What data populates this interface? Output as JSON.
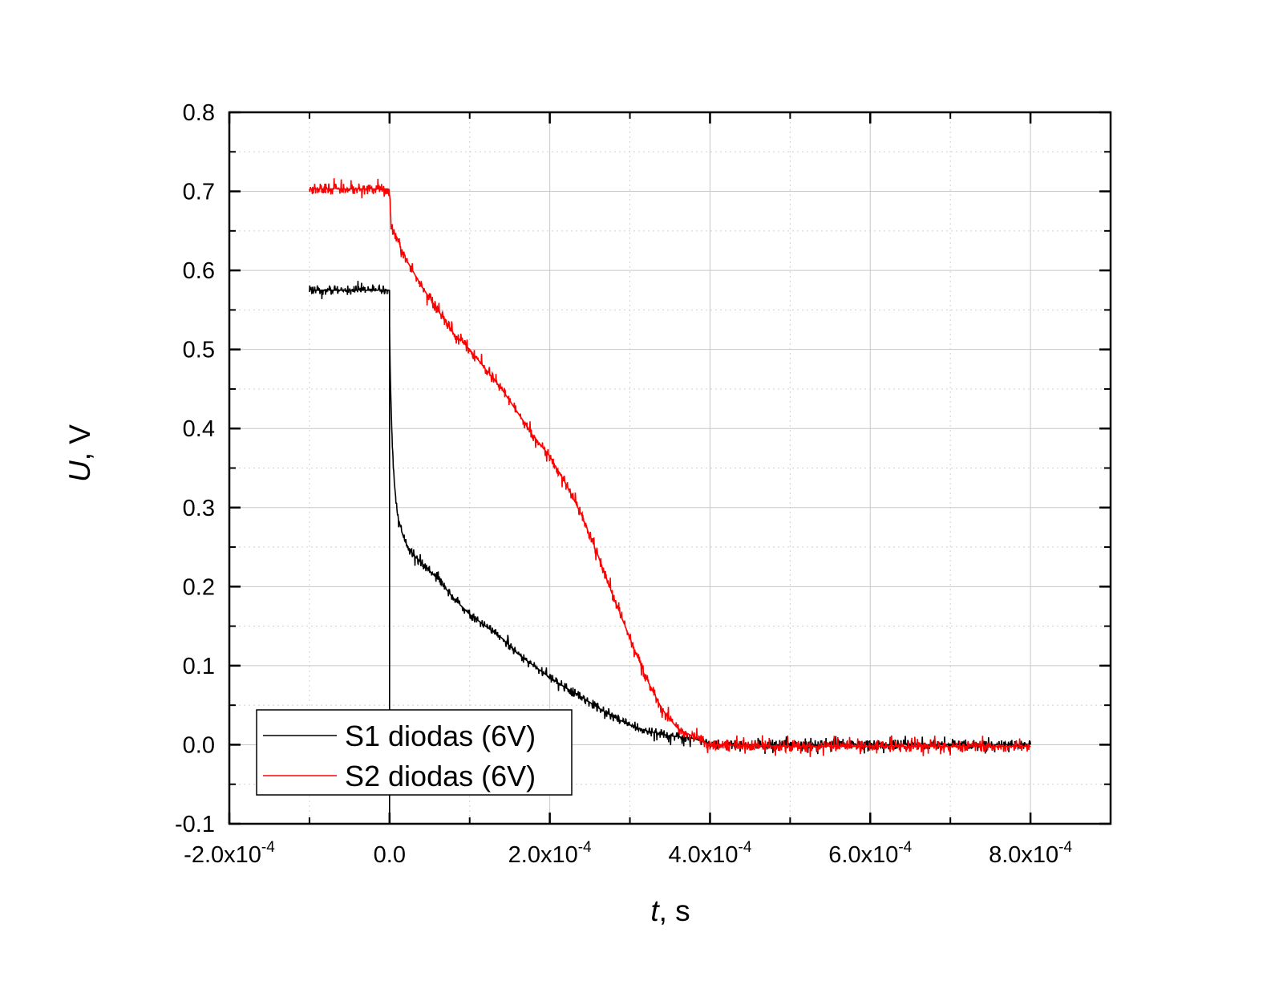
{
  "chart_data": {
    "type": "line",
    "xlabel": {
      "var": "t",
      "rest": ", s"
    },
    "ylabel": {
      "var": "U",
      "rest": ", V"
    },
    "xlim": [
      -0.0002,
      0.0009
    ],
    "ylim": [
      -0.1,
      0.8
    ],
    "grid": true,
    "legend_position": "bottom-left",
    "x_ticks": [
      {
        "value": -0.0002,
        "mantissa": "-2.0x10",
        "exp": "-4"
      },
      {
        "value": 0.0,
        "mantissa": "0.0",
        "exp": ""
      },
      {
        "value": 0.0002,
        "mantissa": "2.0x10",
        "exp": "-4"
      },
      {
        "value": 0.0004,
        "mantissa": "4.0x10",
        "exp": "-4"
      },
      {
        "value": 0.0006,
        "mantissa": "6.0x10",
        "exp": "-4"
      },
      {
        "value": 0.0008,
        "mantissa": "8.0x10",
        "exp": "-4"
      }
    ],
    "y_ticks": [
      {
        "value": -0.1,
        "label": "-0.1"
      },
      {
        "value": 0.0,
        "label": "0.0"
      },
      {
        "value": 0.1,
        "label": "0.1"
      },
      {
        "value": 0.2,
        "label": "0.2"
      },
      {
        "value": 0.3,
        "label": "0.3"
      },
      {
        "value": 0.4,
        "label": "0.4"
      },
      {
        "value": 0.5,
        "label": "0.5"
      },
      {
        "value": 0.6,
        "label": "0.6"
      },
      {
        "value": 0.7,
        "label": "0.7"
      },
      {
        "value": 0.8,
        "label": "0.8"
      }
    ],
    "series": [
      {
        "name": "S1 diodas (6V)",
        "color": "#000000",
        "x": [
          -0.0001,
          0.0,
          0.0,
          1e-06,
          3e-06,
          6e-06,
          1e-05,
          1.5e-05,
          2e-05,
          3e-05,
          4e-05,
          5e-05,
          6e-05,
          8e-05,
          0.0001,
          0.00012,
          0.00014,
          0.00016,
          0.00018,
          0.0002,
          0.00022,
          0.00024,
          0.00026,
          0.00028,
          0.0003,
          0.00032,
          0.00034,
          0.00036,
          0.00038,
          0.0004,
          0.0005,
          0.0006,
          0.0007,
          0.0008
        ],
        "y": [
          0.575,
          0.575,
          0.53,
          0.46,
          0.39,
          0.33,
          0.29,
          0.27,
          0.255,
          0.24,
          0.23,
          0.22,
          0.21,
          0.185,
          0.165,
          0.15,
          0.135,
          0.115,
          0.1,
          0.085,
          0.072,
          0.06,
          0.047,
          0.035,
          0.025,
          0.018,
          0.013,
          0.01,
          0.008,
          0.0,
          0.0,
          0.0,
          0.0,
          0.0
        ]
      },
      {
        "name": "S2 diodas (6V)",
        "color": "#ff0000",
        "x": [
          -0.0001,
          0.0,
          2e-06,
          1e-05,
          2e-05,
          4e-05,
          6e-05,
          8e-05,
          0.0001,
          0.00012,
          0.00014,
          0.00016,
          0.00018,
          0.0002,
          0.00022,
          0.00024,
          0.00026,
          0.00028,
          0.0003,
          0.00032,
          0.00034,
          0.00036,
          0.00038,
          0.0004,
          0.0005,
          0.0006,
          0.0007,
          0.0008
        ],
        "y": [
          0.703,
          0.703,
          0.655,
          0.64,
          0.615,
          0.58,
          0.55,
          0.52,
          0.5,
          0.475,
          0.45,
          0.42,
          0.39,
          0.365,
          0.33,
          0.29,
          0.24,
          0.185,
          0.135,
          0.085,
          0.045,
          0.02,
          0.01,
          0.0,
          -0.002,
          -0.002,
          -0.002,
          -0.002
        ]
      }
    ]
  }
}
